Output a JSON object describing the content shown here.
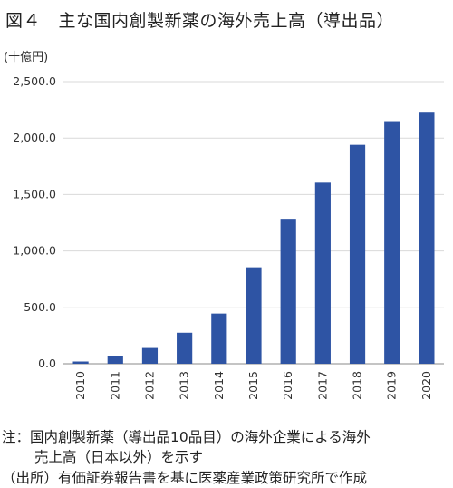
{
  "figure": {
    "title": "図４　主な国内創製新薬の海外売上高（導出品）",
    "notes": [
      "注：国内創製新薬（導出品10品目）の海外企業による海外",
      "売上高（日本以外）を示す",
      "（出所）有価証券報告書を基に医薬産業政策研究所で作成"
    ]
  },
  "colors": {
    "bar": "#2e54a4",
    "grid": "#d9d9d9",
    "axis": "#888888"
  },
  "chart_data": {
    "type": "bar",
    "title": "",
    "unit_label": "(十億円)",
    "xlabel": "",
    "ylabel": "",
    "categories": [
      "2010",
      "2011",
      "2012",
      "2013",
      "2014",
      "2015",
      "2016",
      "2017",
      "2018",
      "2019",
      "2020"
    ],
    "values": [
      20,
      70,
      140,
      275,
      445,
      855,
      1285,
      1605,
      1940,
      2150,
      2225
    ],
    "ylim": [
      0,
      2500
    ],
    "yticks": [
      "0.0",
      "500.0",
      "1,000.0",
      "1,500.0",
      "2,000.0",
      "2,500.0"
    ],
    "ytick_values": [
      0,
      500,
      1000,
      1500,
      2000,
      2500
    ],
    "grid": true,
    "legend": "none",
    "x_tick_rotation": "vertical"
  }
}
